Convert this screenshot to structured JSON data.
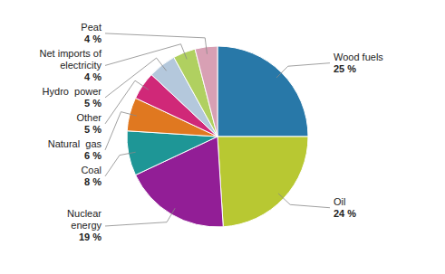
{
  "chart_data": {
    "type": "pie",
    "categories": [
      "Wood fuels",
      "Oil",
      "Nuclear\nenergy",
      "Coal",
      "Natural  gas",
      "Other",
      "Hydro  power",
      "Net imports of\nelectricity",
      "Peat"
    ],
    "values": [
      25,
      24,
      19,
      8,
      6,
      5,
      5,
      4,
      4
    ],
    "value_labels": [
      "25 %",
      "24 %",
      "19 %",
      "8 %",
      "6 %",
      "5 %",
      "5 %",
      "4 %",
      "4 %"
    ],
    "colors": [
      "#2878a8",
      "#b8c832",
      "#921e96",
      "#1e9696",
      "#e07820",
      "#d02878",
      "#b4c8dc",
      "#b0d060",
      "#d8a0b4"
    ],
    "data_labels": true
  }
}
